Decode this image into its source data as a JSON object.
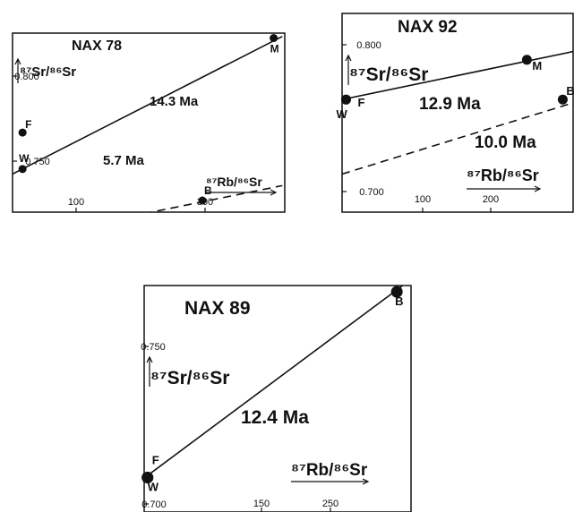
{
  "chart_data": [
    {
      "type": "scatter",
      "title": "NAX 78",
      "xlabel": "⁸⁷Rb/⁸⁶Sr",
      "ylabel": "⁸⁷Sr/⁸⁶Sr",
      "xlim": [
        0,
        410
      ],
      "ylim": [
        0.728,
        0.836
      ],
      "xticks": [
        "100",
        "300"
      ],
      "yticks": [
        "0.800",
        "0.750"
      ],
      "points": [
        {
          "label": "W",
          "x": 15,
          "y": 0.754
        },
        {
          "label": "F",
          "x": 15,
          "y": 0.776
        },
        {
          "label": "M",
          "x": 392,
          "y": 0.833
        },
        {
          "label": "B",
          "x": 285,
          "y": 0.735
        }
      ],
      "isochrons": [
        {
          "age": "14.3 Ma",
          "style": "solid",
          "from": [
            0,
            0.751
          ],
          "to": [
            405,
            0.834
          ]
        },
        {
          "age": "5.7 Ma",
          "style": "dashed",
          "from": [
            0,
            0.711
          ],
          "to": [
            405,
            0.744
          ]
        }
      ]
    },
    {
      "type": "scatter",
      "title": "NAX 92",
      "xlabel": "⁸⁷Rb/⁸⁶Sr",
      "ylabel": "⁸⁷Sr/⁸⁶Sr",
      "xlim": [
        0,
        290
      ],
      "ylim": [
        0.695,
        0.815
      ],
      "xticks": [
        "100",
        "200"
      ],
      "yticks": [
        "0.800",
        "0.700"
      ],
      "points": [
        {
          "label": "W",
          "x": 5,
          "y": 0.763
        },
        {
          "label": "F",
          "x": 5,
          "y": 0.763
        },
        {
          "label": "M",
          "x": 232,
          "y": 0.787
        },
        {
          "label": "B",
          "x": 277,
          "y": 0.763
        }
      ],
      "isochrons": [
        {
          "age": "12.9 Ma",
          "style": "solid",
          "from": [
            0,
            0.763
          ],
          "to": [
            290,
            0.792
          ]
        },
        {
          "age": "10.0 Ma",
          "style": "dashed",
          "from": [
            0,
            0.718
          ],
          "to": [
            290,
            0.761
          ]
        }
      ]
    },
    {
      "type": "scatter",
      "title": "NAX 89",
      "xlabel": "⁸⁷Rb/⁸⁶Sr",
      "ylabel": "⁸⁷Sr/⁸⁶Sr",
      "xlim": [
        0,
        320
      ],
      "ylim": [
        0.695,
        0.785
      ],
      "xticks": [
        "150",
        "250"
      ],
      "yticks": [
        "0.750",
        "0.700"
      ],
      "points": [
        {
          "label": "W",
          "x": 4,
          "y": 0.7087
        },
        {
          "label": "F",
          "x": 4,
          "y": 0.7087
        },
        {
          "label": "B",
          "x": 303,
          "y": 0.7825
        }
      ],
      "isochrons": [
        {
          "age": "12.4 Ma",
          "style": "solid",
          "from": [
            0,
            0.7085
          ],
          "to": [
            310,
            0.785
          ]
        }
      ]
    }
  ]
}
